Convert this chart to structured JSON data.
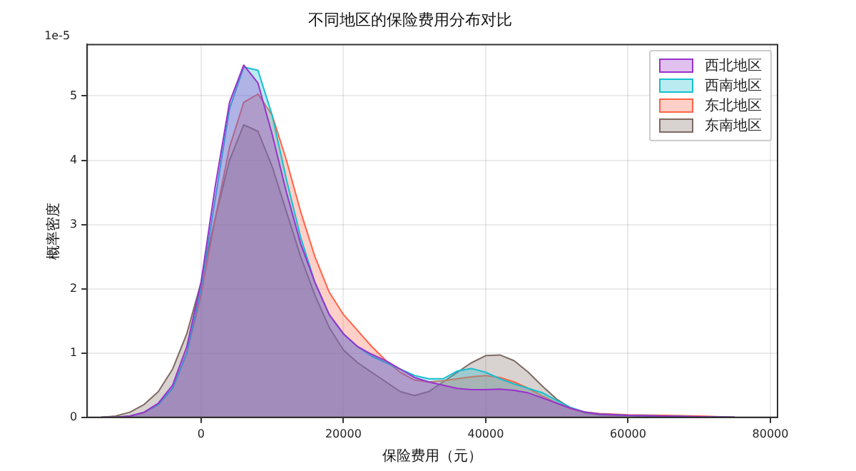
{
  "chart_data": {
    "type": "area",
    "title": "不同地区的保险费用分布对比",
    "xlabel": "保险费用（元）",
    "ylabel": "概率密度",
    "annotations": [
      "1e-5"
    ],
    "x": [
      -14000,
      -12000,
      -10000,
      -8000,
      -6000,
      -4000,
      -2000,
      0,
      2000,
      4000,
      6000,
      8000,
      10000,
      12000,
      14000,
      16000,
      18000,
      20000,
      22000,
      24000,
      26000,
      28000,
      30000,
      32000,
      34000,
      36000,
      38000,
      40000,
      42000,
      44000,
      46000,
      48000,
      50000,
      52000,
      54000,
      56000,
      60000,
      65000,
      70000,
      75000
    ],
    "series": [
      {
        "name": "西北地区",
        "color": "#9932cc",
        "values": [
          0,
          0,
          0.02,
          0.08,
          0.22,
          0.5,
          1.1,
          2.1,
          3.6,
          4.9,
          5.48,
          5.2,
          4.4,
          3.5,
          2.7,
          2.1,
          1.6,
          1.3,
          1.1,
          0.98,
          0.88,
          0.75,
          0.62,
          0.55,
          0.5,
          0.45,
          0.43,
          0.43,
          0.44,
          0.42,
          0.38,
          0.3,
          0.22,
          0.14,
          0.08,
          0.05,
          0.03,
          0.02,
          0.01,
          0
        ]
      },
      {
        "name": "西南地区",
        "color": "#17becf",
        "values": [
          0,
          0,
          0.02,
          0.08,
          0.2,
          0.45,
          1.0,
          2.0,
          3.4,
          4.8,
          5.45,
          5.4,
          4.7,
          3.7,
          2.8,
          2.1,
          1.6,
          1.3,
          1.1,
          0.95,
          0.85,
          0.75,
          0.65,
          0.6,
          0.6,
          0.72,
          0.76,
          0.7,
          0.6,
          0.52,
          0.45,
          0.38,
          0.26,
          0.15,
          0.08,
          0.05,
          0.03,
          0.02,
          0.01,
          0
        ]
      },
      {
        "name": "东北地区",
        "color": "#ff6347",
        "values": [
          0,
          0,
          0.02,
          0.07,
          0.2,
          0.45,
          1.0,
          1.9,
          3.1,
          4.2,
          4.9,
          5.03,
          4.7,
          4.0,
          3.2,
          2.5,
          1.95,
          1.6,
          1.35,
          1.1,
          0.88,
          0.7,
          0.58,
          0.55,
          0.57,
          0.6,
          0.63,
          0.65,
          0.62,
          0.55,
          0.45,
          0.33,
          0.22,
          0.13,
          0.08,
          0.06,
          0.04,
          0.03,
          0.02,
          0
        ]
      },
      {
        "name": "东南地区",
        "color": "#7f6a63",
        "values": [
          0,
          0.02,
          0.08,
          0.2,
          0.4,
          0.75,
          1.3,
          2.1,
          3.1,
          4.0,
          4.55,
          4.45,
          3.9,
          3.2,
          2.5,
          1.9,
          1.4,
          1.05,
          0.85,
          0.7,
          0.55,
          0.4,
          0.34,
          0.4,
          0.55,
          0.7,
          0.85,
          0.96,
          0.97,
          0.88,
          0.7,
          0.48,
          0.28,
          0.14,
          0.07,
          0.04,
          0.03,
          0.02,
          0.01,
          0
        ]
      }
    ],
    "xlim": [
      -16000,
      81000
    ],
    "xticks": [
      0,
      20000,
      40000,
      60000,
      80000
    ],
    "ylim": [
      0,
      5.8
    ],
    "yticks": [
      0,
      1,
      2,
      3,
      4,
      5
    ],
    "grid": true,
    "legend": "top right",
    "line_style": "solid"
  }
}
